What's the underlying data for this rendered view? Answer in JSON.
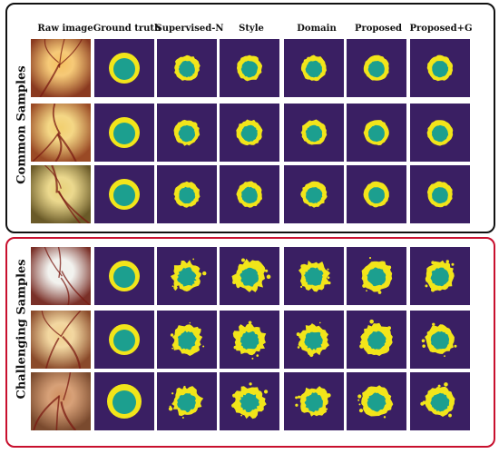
{
  "column_headers": [
    "Raw image",
    "Ground truth",
    "Supervised-N",
    "Style",
    "Domain",
    "Proposed",
    "Proposed+G"
  ],
  "groups": [
    {
      "label": "Common Samples",
      "rows": [
        {
          "raw": {
            "bg": "#8a3a20",
            "disc": "#f4c060"
          }
        },
        {
          "raw": {
            "bg": "#9a4a25",
            "disc": "#f2d070"
          }
        },
        {
          "raw": {
            "bg": "#6a5a28",
            "disc": "#e8d27a"
          }
        }
      ]
    },
    {
      "label": "Challenging Samples",
      "rows": [
        {
          "raw": {
            "bg": "#7a3028",
            "disc": "#f0f0ec"
          }
        },
        {
          "raw": {
            "bg": "#8a4a2a",
            "disc": "#f0d090"
          }
        },
        {
          "raw": {
            "bg": "#7a4a2e",
            "disc": "#d09060"
          }
        }
      ]
    }
  ],
  "colors": {
    "mask_background": "#3a1f63",
    "optic_disc": "#f2e51a",
    "optic_cup": "#1c9f8f",
    "common_border": "#111111",
    "challenging_border": "#c8102e"
  }
}
